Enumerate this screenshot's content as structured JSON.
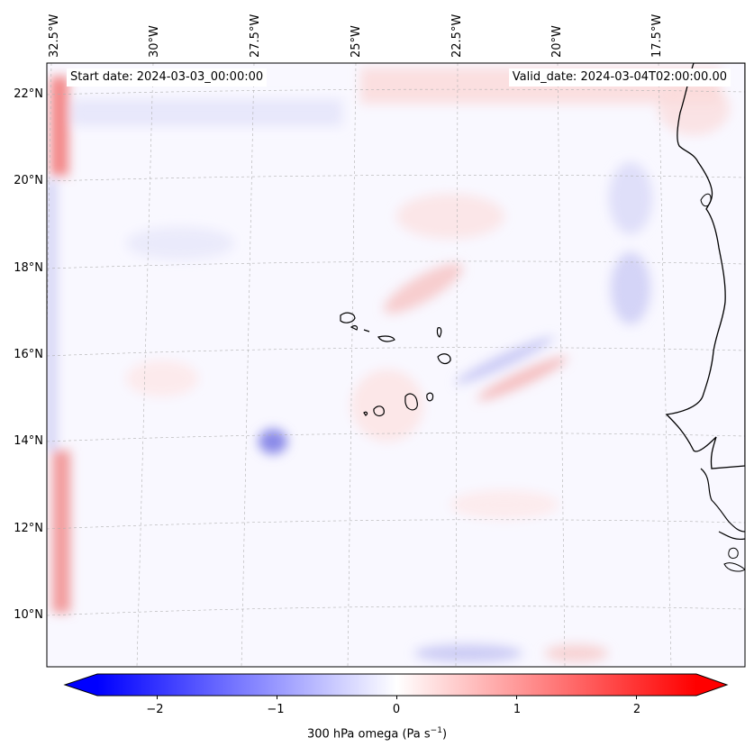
{
  "map": {
    "projection": "lambert-conformal",
    "region": "Cape Verde / West Africa, Eastern Atlantic",
    "variable": "300 hPa omega",
    "start_label": "Start date: 2024-03-03_00:00:00",
    "valid_label": "Valid_date: 2024-03-04T02:00:00.00",
    "lon_labels": [
      "32.5°W",
      "30°W",
      "27.5°W",
      "25°W",
      "22.5°W",
      "20°W",
      "17.5°W"
    ],
    "lat_labels": [
      "22°N",
      "20°N",
      "18°N",
      "16°N",
      "14°N",
      "12°N",
      "10°N"
    ],
    "colors": {
      "neg_max": "#0000ff",
      "neutral": "#ffffff",
      "pos_max": "#ff0000",
      "coast": "#000000",
      "grid": "#b0b0b0"
    }
  },
  "colorbar": {
    "label": "300 hPa omega (Pa s",
    "label_sup": "−1",
    "label_close": ")",
    "min": -2.5,
    "max": 2.5,
    "ticks": [
      "−2",
      "−1",
      "0",
      "1",
      "2"
    ],
    "tick_values": [
      -2,
      -1,
      0,
      1,
      2
    ]
  }
}
